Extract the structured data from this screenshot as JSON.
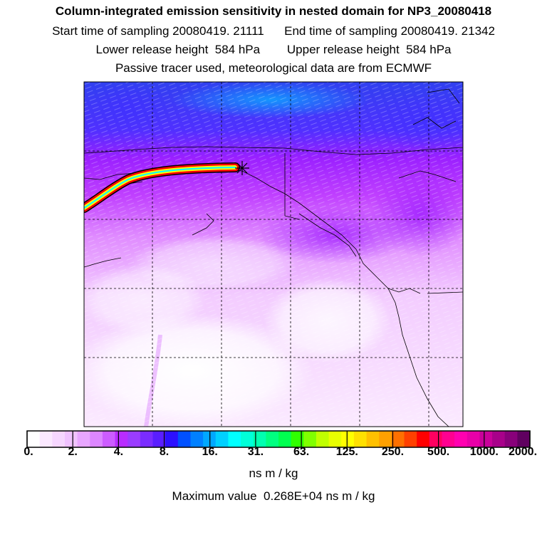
{
  "header": {
    "title": "Column-integrated emission sensitivity in nested domain for NP3_20080418",
    "start_label": "Start time of sampling 20080419. 21111",
    "end_label": "End time of sampling 20080419. 21342",
    "lower_label": "Lower release height  584 hPa",
    "upper_label": "Upper release height  584 hPa",
    "tracer_note": "Passive tracer used, meteorological data are from ECMWF"
  },
  "colorbar": {
    "tick_labels": [
      "0.",
      "2.",
      "4.",
      "8.",
      "16.",
      "31.",
      "63.",
      "125.",
      "250.",
      "500.",
      "1000.",
      "2000."
    ],
    "unit": "ns m / kg",
    "colors": [
      "#ffffff",
      "#fbe8ff",
      "#f6d6ff",
      "#f0c2ff",
      "#e8a6ff",
      "#dc86ff",
      "#cc5cff",
      "#b82cff",
      "#9a3cff",
      "#7a2cff",
      "#5a1eff",
      "#2c10ff",
      "#0050ff",
      "#0080ff",
      "#00a8ff",
      "#00d0ff",
      "#00ffff",
      "#00ffd8",
      "#00ffb0",
      "#00ff80",
      "#00ff50",
      "#30ff00",
      "#80ff00",
      "#c0ff00",
      "#e8ff00",
      "#ffff00",
      "#ffe000",
      "#ffc000",
      "#ffa000",
      "#ff7000",
      "#ff4000",
      "#ff0000",
      "#ff0060",
      "#ff0090",
      "#ff00b0",
      "#e800a8",
      "#c8009a",
      "#a8008a",
      "#88007a",
      "#600060"
    ]
  },
  "maximum": {
    "label": "Maximum value  0.268E+04 ns m / kg"
  },
  "map": {
    "ocean_high_color": "#3a40f0",
    "mid_color": "#b018ff",
    "low_color": "#f0b0ff",
    "plume_colors": [
      "#ff0000",
      "#ffff00",
      "#00ffff",
      "#000000"
    ],
    "grid_style": "dashed",
    "release_marker": "star"
  }
}
